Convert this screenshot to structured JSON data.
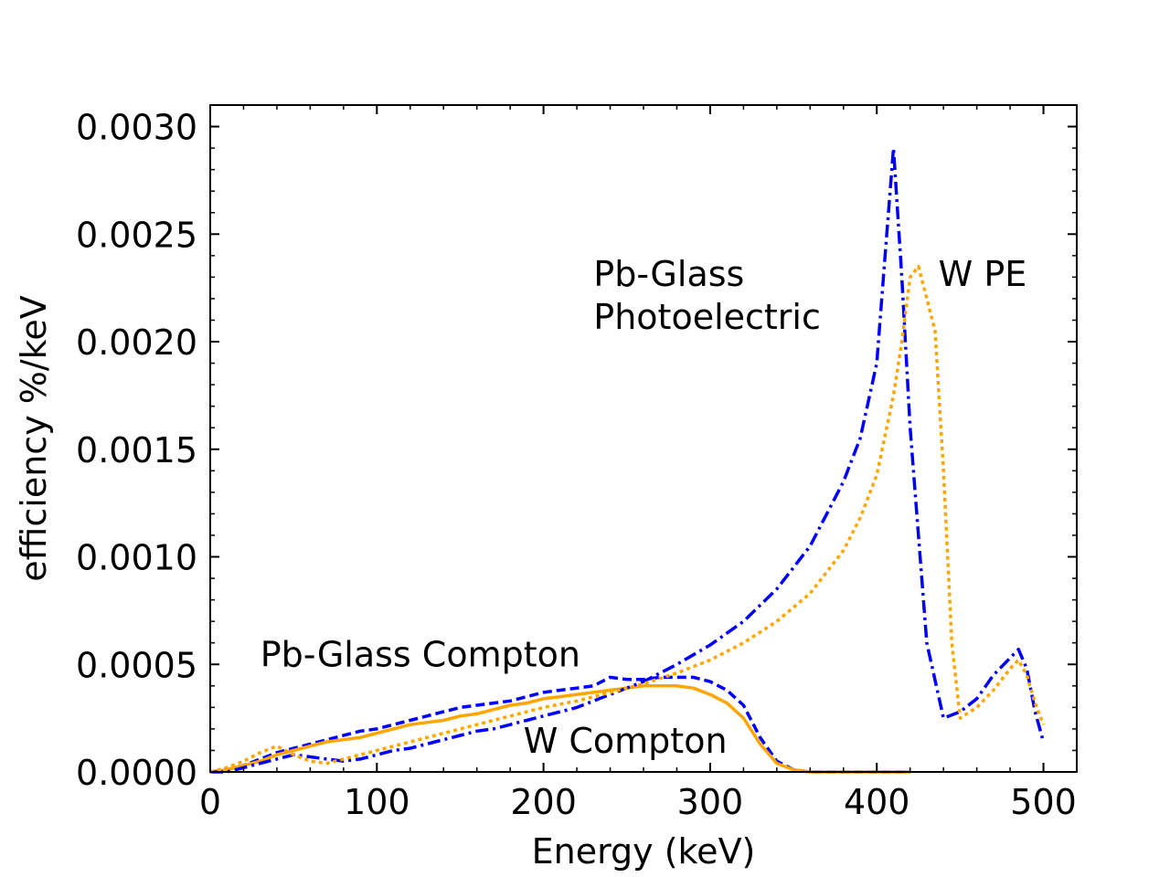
{
  "chart_data": {
    "type": "line",
    "title": "",
    "xlabel": "Energy (keV)",
    "ylabel": "efficiency %/keV",
    "xlim": [
      0,
      520
    ],
    "ylim": [
      0,
      0.0031
    ],
    "x_ticks": [
      0,
      100,
      200,
      300,
      400,
      500
    ],
    "x_tick_labels": [
      "0",
      "100",
      "200",
      "300",
      "400",
      "500"
    ],
    "y_ticks": [
      0,
      0.0005,
      0.001,
      0.0015,
      0.002,
      0.0025,
      0.003
    ],
    "y_tick_labels": [
      "0.0000",
      "0.0005",
      "0.0010",
      "0.0015",
      "0.0020",
      "0.0025",
      "0.0030"
    ],
    "grid": false,
    "series": [
      {
        "name": "Pb-Glass Compton",
        "color": "#0000ff",
        "dash": "dashed",
        "x": [
          0,
          10,
          20,
          30,
          40,
          50,
          60,
          70,
          80,
          90,
          100,
          110,
          120,
          130,
          140,
          150,
          160,
          170,
          180,
          190,
          200,
          210,
          220,
          230,
          240,
          250,
          260,
          270,
          280,
          290,
          300,
          310,
          320,
          330,
          340,
          350,
          360,
          380,
          400,
          420
        ],
        "y": [
          0.0,
          1e-05,
          3e-05,
          6e-05,
          9e-05,
          0.00011,
          0.00013,
          0.00015,
          0.00017,
          0.00019,
          0.0002,
          0.00022,
          0.00024,
          0.00026,
          0.00028,
          0.0003,
          0.00031,
          0.00032,
          0.00033,
          0.00035,
          0.00037,
          0.00038,
          0.00039,
          0.0004,
          0.00044,
          0.00043,
          0.00043,
          0.00044,
          0.00044,
          0.00044,
          0.00042,
          0.00038,
          0.00031,
          0.00016,
          5e-05,
          1e-05,
          0.0,
          0.0,
          0.0,
          0.0
        ]
      },
      {
        "name": "W Compton",
        "color": "#ffa500",
        "dash": "solid",
        "x": [
          0,
          10,
          20,
          30,
          40,
          50,
          60,
          70,
          80,
          90,
          100,
          110,
          120,
          130,
          140,
          150,
          160,
          170,
          180,
          190,
          200,
          210,
          220,
          230,
          240,
          250,
          260,
          270,
          280,
          290,
          300,
          310,
          320,
          330,
          340,
          350,
          360,
          380,
          400,
          420
        ],
        "y": [
          0.0,
          1e-05,
          3e-05,
          5e-05,
          8e-05,
          0.0001,
          0.00012,
          0.00014,
          0.00015,
          0.00016,
          0.00018,
          0.0002,
          0.00022,
          0.00023,
          0.00024,
          0.00026,
          0.00027,
          0.00029,
          0.00031,
          0.00032,
          0.00034,
          0.00035,
          0.00036,
          0.00037,
          0.00038,
          0.00039,
          0.0004,
          0.0004,
          0.0004,
          0.00039,
          0.00036,
          0.00032,
          0.00025,
          0.00013,
          4e-05,
          1e-05,
          0.0,
          0.0,
          0.0,
          0.0
        ]
      },
      {
        "name": "Pb-Glass Photoelectric",
        "color": "#0000ff",
        "dash": "dashdot",
        "x": [
          0,
          10,
          20,
          30,
          40,
          50,
          60,
          70,
          80,
          90,
          100,
          110,
          120,
          130,
          140,
          150,
          160,
          170,
          180,
          190,
          200,
          220,
          240,
          260,
          280,
          300,
          320,
          340,
          360,
          380,
          390,
          400,
          405,
          410,
          415,
          420,
          425,
          430,
          440,
          450,
          460,
          470,
          480,
          485,
          490,
          495,
          500
        ],
        "y": [
          0.0,
          0.0,
          2e-05,
          4e-05,
          6e-05,
          8e-05,
          7e-05,
          6e-05,
          5e-05,
          6e-05,
          8e-05,
          0.0001,
          0.00011,
          0.00013,
          0.00015,
          0.00017,
          0.00019,
          0.0002,
          0.00022,
          0.00024,
          0.00026,
          0.0003,
          0.00036,
          0.00042,
          0.0005,
          0.00059,
          0.0007,
          0.00085,
          0.00105,
          0.00135,
          0.00155,
          0.0019,
          0.0024,
          0.0029,
          0.0023,
          0.0016,
          0.0011,
          0.0006,
          0.00025,
          0.00028,
          0.00034,
          0.00045,
          0.00053,
          0.00057,
          0.00048,
          0.00028,
          0.00014
        ]
      },
      {
        "name": "W PE",
        "color": "#ffa500",
        "dash": "dotted",
        "x": [
          0,
          10,
          20,
          30,
          40,
          50,
          60,
          70,
          80,
          90,
          100,
          110,
          120,
          130,
          140,
          150,
          160,
          170,
          180,
          190,
          200,
          220,
          240,
          260,
          280,
          300,
          320,
          340,
          360,
          380,
          390,
          400,
          410,
          415,
          420,
          425,
          430,
          435,
          440,
          445,
          450,
          460,
          470,
          480,
          485,
          490,
          495,
          500
        ],
        "y": [
          0.0,
          2e-05,
          5e-05,
          9e-05,
          0.00012,
          8e-05,
          5e-05,
          4e-05,
          6e-05,
          8e-05,
          0.0001,
          0.00012,
          0.00014,
          0.00016,
          0.00018,
          0.0002,
          0.00022,
          0.00024,
          0.00026,
          0.00028,
          0.0003,
          0.00033,
          0.00037,
          0.00041,
          0.00046,
          0.00052,
          0.0006,
          0.0007,
          0.00083,
          0.00103,
          0.00118,
          0.00138,
          0.00175,
          0.002,
          0.0023,
          0.00235,
          0.0022,
          0.00205,
          0.0014,
          0.0006,
          0.00025,
          0.0003,
          0.00038,
          0.00048,
          0.00052,
          0.00045,
          0.00032,
          0.00022
        ]
      }
    ],
    "annotations": [
      {
        "text": "Pb-Glass",
        "x": 230,
        "y": 0.00226
      },
      {
        "text": "Photoelectric",
        "x": 230,
        "y": 0.00206
      },
      {
        "text": "W PE",
        "x": 437,
        "y": 0.00226
      },
      {
        "text": "Pb-Glass Compton",
        "x": 30,
        "y": 0.00049
      },
      {
        "text": "W Compton",
        "x": 188,
        "y": 9e-05
      }
    ]
  }
}
